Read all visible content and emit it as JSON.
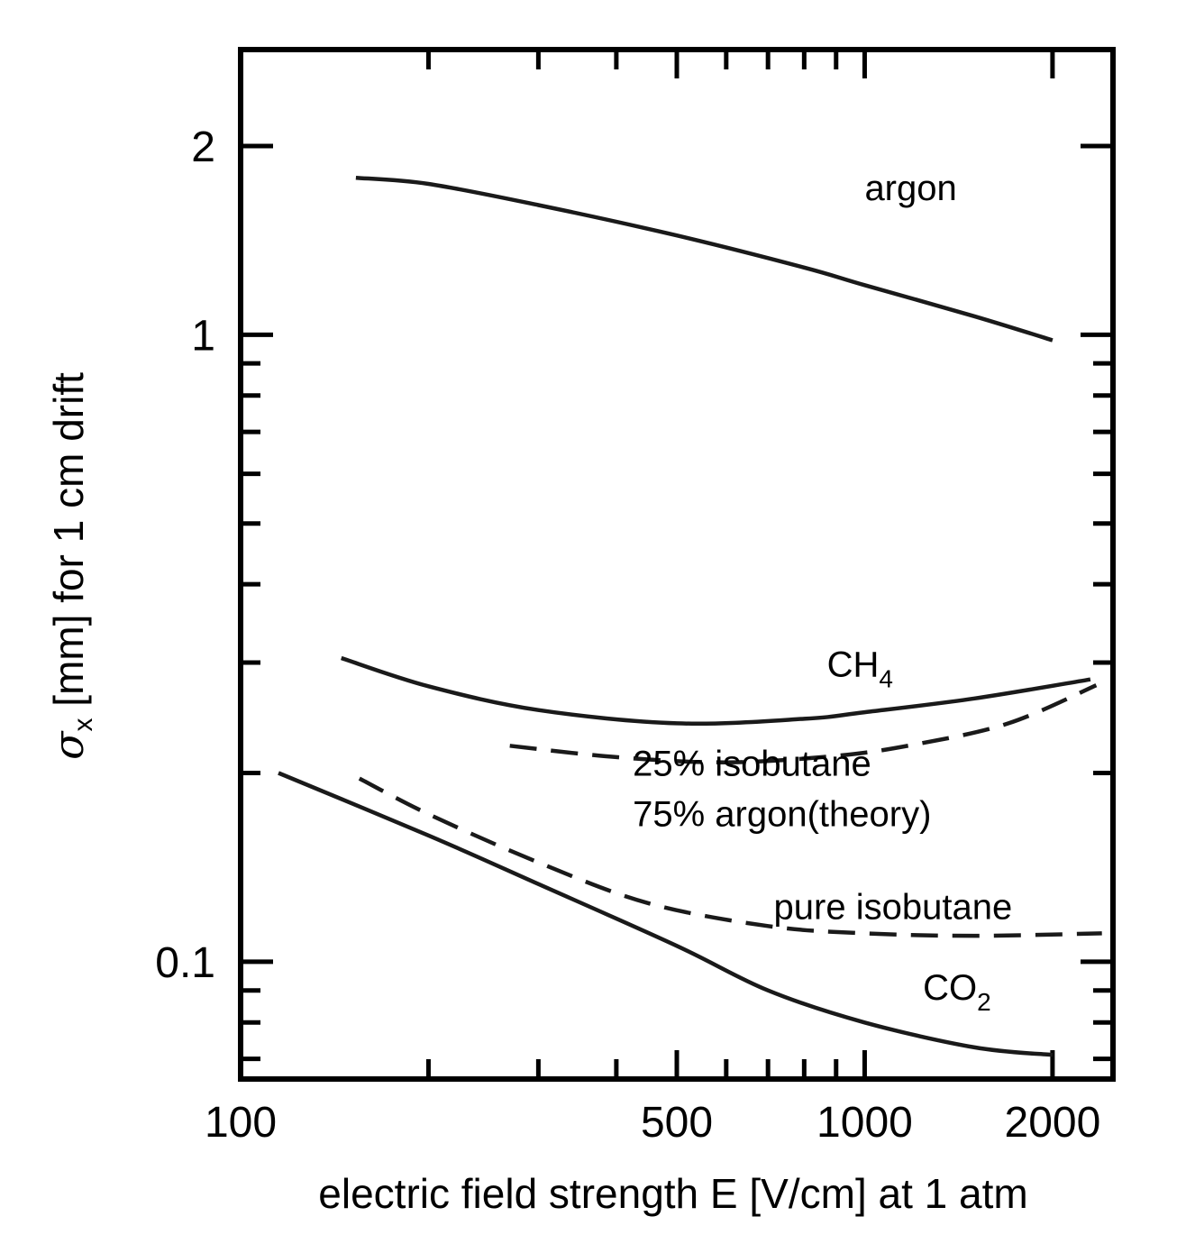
{
  "chart_data": {
    "type": "line",
    "title": "",
    "xlabel": "electric field strength E [V/cm] at 1 atm",
    "ylabel": {
      "symbol": "σ",
      "subscript": "x",
      "text": " [mm] for 1 cm drift"
    },
    "x_scale": "log",
    "y_scale": "log",
    "xlim": [
      100,
      2500
    ],
    "ylim": [
      0.065,
      2.85
    ],
    "x_tick_labels": [
      "100",
      "500",
      "1000",
      "2000"
    ],
    "x_tick_values": [
      100,
      500,
      1000,
      2000
    ],
    "y_tick_labels": [
      "0.1",
      "1",
      "2"
    ],
    "y_tick_values": [
      0.1,
      1,
      2
    ],
    "grid": false,
    "legend": "none",
    "series": [
      {
        "name": "argon",
        "style": "solid",
        "label": {
          "text": "argon",
          "sub": "",
          "at": [
            1000,
            1.64
          ]
        },
        "points": [
          [
            153,
            1.78
          ],
          [
            200,
            1.74
          ],
          [
            300,
            1.61
          ],
          [
            500,
            1.44
          ],
          [
            800,
            1.28
          ],
          [
            1000,
            1.2
          ],
          [
            1500,
            1.07
          ],
          [
            2000,
            0.98
          ]
        ]
      },
      {
        "name": "CH4",
        "style": "solid",
        "label": {
          "text": "CH",
          "sub": "4",
          "at": [
            870,
            0.285
          ]
        },
        "points": [
          [
            145,
            0.305
          ],
          [
            200,
            0.275
          ],
          [
            300,
            0.252
          ],
          [
            500,
            0.24
          ],
          [
            800,
            0.244
          ],
          [
            1000,
            0.25
          ],
          [
            1500,
            0.263
          ],
          [
            2300,
            0.282
          ]
        ]
      },
      {
        "name": "25% isobutane 75% argon(theory)",
        "style": "dashed",
        "label": {
          "lines": [
            "25% isobutane",
            "75% argon(theory)"
          ],
          "at": [
            425,
            0.198
          ]
        },
        "points": [
          [
            270,
            0.221
          ],
          [
            400,
            0.212
          ],
          [
            600,
            0.208
          ],
          [
            900,
            0.213
          ],
          [
            1200,
            0.222
          ],
          [
            1700,
            0.24
          ],
          [
            2350,
            0.276
          ]
        ]
      },
      {
        "name": "pure isobutane",
        "style": "dashed",
        "label": {
          "text": "pure isobutane",
          "sub": "",
          "at": [
            715,
            0.117
          ]
        },
        "points": [
          [
            155,
            0.196
          ],
          [
            200,
            0.172
          ],
          [
            300,
            0.144
          ],
          [
            450,
            0.124
          ],
          [
            700,
            0.114
          ],
          [
            1000,
            0.111
          ],
          [
            1500,
            0.11
          ],
          [
            2400,
            0.111
          ]
        ]
      },
      {
        "name": "CO2",
        "style": "solid",
        "label": {
          "text": "CO",
          "sub": "2",
          "at": [
            1240,
            0.087
          ]
        },
        "points": [
          [
            115,
            0.2
          ],
          [
            200,
            0.159
          ],
          [
            300,
            0.133
          ],
          [
            500,
            0.106
          ],
          [
            700,
            0.09
          ],
          [
            1000,
            0.08
          ],
          [
            1500,
            0.073
          ],
          [
            2000,
            0.071
          ]
        ]
      }
    ]
  }
}
